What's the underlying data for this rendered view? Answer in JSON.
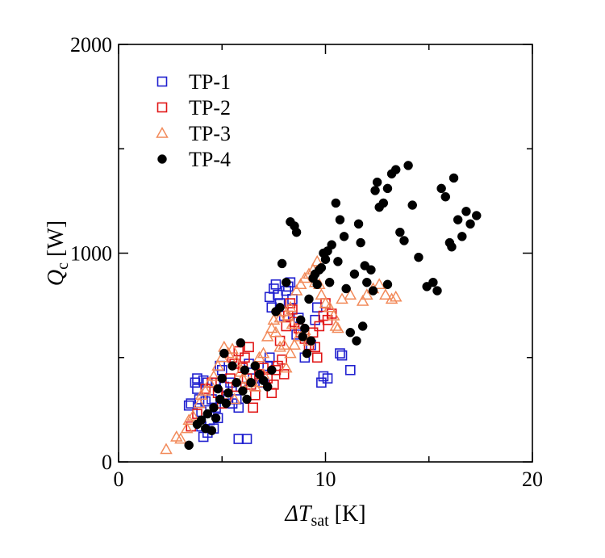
{
  "chart_data": {
    "type": "scatter",
    "title": "",
    "xlabel": {
      "main": "ΔT",
      "sub": "sat",
      "unit": " [K]"
    },
    "ylabel": {
      "main": "Q",
      "sub": "c",
      "unit": " [W]"
    },
    "xlim": [
      0,
      20
    ],
    "ylim": [
      0,
      2000
    ],
    "xticks": [
      0,
      10,
      20
    ],
    "yticks": [
      0,
      1000,
      2000
    ],
    "grid": false,
    "legend": "top-left",
    "series": [
      {
        "name": "TP-1",
        "marker": "open-square",
        "color": "#1f1fcf",
        "points": [
          [
            3.4,
            270
          ],
          [
            3.5,
            280
          ],
          [
            3.7,
            380
          ],
          [
            3.8,
            400
          ],
          [
            3.8,
            350
          ],
          [
            3.9,
            300
          ],
          [
            4.0,
            240
          ],
          [
            4.0,
            170
          ],
          [
            4.1,
            120
          ],
          [
            4.1,
            390
          ],
          [
            4.2,
            290
          ],
          [
            4.3,
            140
          ],
          [
            4.3,
            380
          ],
          [
            4.4,
            200
          ],
          [
            4.5,
            300
          ],
          [
            4.6,
            160
          ],
          [
            4.7,
            260
          ],
          [
            4.7,
            380
          ],
          [
            4.8,
            210
          ],
          [
            4.9,
            460
          ],
          [
            5.0,
            440
          ],
          [
            5.1,
            360
          ],
          [
            5.3,
            300
          ],
          [
            5.4,
            380
          ],
          [
            5.5,
            280
          ],
          [
            5.7,
            300
          ],
          [
            5.8,
            260
          ],
          [
            5.9,
            360
          ],
          [
            5.8,
            110
          ],
          [
            6.2,
            110
          ],
          [
            6.3,
            470
          ],
          [
            6.5,
            400
          ],
          [
            6.8,
            410
          ],
          [
            7.0,
            380
          ],
          [
            7.2,
            460
          ],
          [
            7.3,
            500
          ],
          [
            7.3,
            790
          ],
          [
            7.4,
            740
          ],
          [
            7.5,
            830
          ],
          [
            7.6,
            850
          ],
          [
            7.7,
            800
          ],
          [
            7.8,
            760
          ],
          [
            8.0,
            700
          ],
          [
            8.1,
            820
          ],
          [
            8.2,
            840
          ],
          [
            8.3,
            860
          ],
          [
            8.4,
            780
          ],
          [
            8.6,
            610
          ],
          [
            8.7,
            690
          ],
          [
            9.0,
            500
          ],
          [
            9.3,
            560
          ],
          [
            9.5,
            680
          ],
          [
            9.6,
            740
          ],
          [
            9.8,
            380
          ],
          [
            9.9,
            410
          ],
          [
            10.1,
            400
          ],
          [
            10.7,
            520
          ],
          [
            10.8,
            510
          ],
          [
            11.2,
            440
          ]
        ]
      },
      {
        "name": "TP-2",
        "marker": "open-square",
        "color": "#e11717",
        "points": [
          [
            3.5,
            170
          ],
          [
            3.8,
            230
          ],
          [
            4.2,
            350
          ],
          [
            4.5,
            380
          ],
          [
            4.8,
            330
          ],
          [
            5.0,
            280
          ],
          [
            5.2,
            310
          ],
          [
            5.4,
            400
          ],
          [
            5.5,
            500
          ],
          [
            5.6,
            470
          ],
          [
            5.7,
            360
          ],
          [
            5.8,
            530
          ],
          [
            6.0,
            450
          ],
          [
            6.1,
            500
          ],
          [
            6.2,
            400
          ],
          [
            6.3,
            550
          ],
          [
            6.4,
            370
          ],
          [
            6.5,
            260
          ],
          [
            6.6,
            320
          ],
          [
            6.8,
            420
          ],
          [
            7.0,
            450
          ],
          [
            7.2,
            400
          ],
          [
            7.4,
            330
          ],
          [
            7.5,
            370
          ],
          [
            7.6,
            440
          ],
          [
            7.7,
            460
          ],
          [
            7.8,
            580
          ],
          [
            7.9,
            490
          ],
          [
            8.0,
            420
          ],
          [
            8.1,
            650
          ],
          [
            8.2,
            700
          ],
          [
            8.3,
            760
          ],
          [
            8.4,
            730
          ],
          [
            8.5,
            670
          ],
          [
            8.7,
            640
          ],
          [
            8.8,
            620
          ],
          [
            9.0,
            590
          ],
          [
            9.2,
            560
          ],
          [
            9.4,
            620
          ],
          [
            9.5,
            550
          ],
          [
            9.6,
            500
          ],
          [
            9.7,
            650
          ],
          [
            9.9,
            700
          ],
          [
            10.0,
            760
          ],
          [
            10.1,
            680
          ],
          [
            10.3,
            710
          ]
        ]
      },
      {
        "name": "TP-3",
        "marker": "open-triangle",
        "color": "#f28a5a",
        "points": [
          [
            2.3,
            60
          ],
          [
            2.8,
            120
          ],
          [
            3.0,
            110
          ],
          [
            3.3,
            160
          ],
          [
            3.6,
            220
          ],
          [
            3.9,
            280
          ],
          [
            4.2,
            340
          ],
          [
            4.4,
            380
          ],
          [
            4.6,
            410
          ],
          [
            4.8,
            460
          ],
          [
            5.0,
            500
          ],
          [
            5.1,
            550
          ],
          [
            5.3,
            520
          ],
          [
            5.5,
            540
          ],
          [
            5.7,
            480
          ],
          [
            5.9,
            430
          ],
          [
            6.0,
            400
          ],
          [
            6.3,
            380
          ],
          [
            6.6,
            360
          ],
          [
            6.8,
            380
          ],
          [
            7.0,
            420
          ],
          [
            7.2,
            600
          ],
          [
            7.4,
            640
          ],
          [
            7.5,
            680
          ],
          [
            7.6,
            620
          ],
          [
            7.8,
            690
          ],
          [
            8.0,
            720
          ],
          [
            8.2,
            700
          ],
          [
            8.3,
            740
          ],
          [
            8.4,
            660
          ],
          [
            8.6,
            820
          ],
          [
            8.8,
            850
          ],
          [
            9.0,
            880
          ],
          [
            9.2,
            900
          ],
          [
            9.4,
            920
          ],
          [
            9.5,
            860
          ],
          [
            9.6,
            960
          ],
          [
            9.7,
            850
          ],
          [
            9.8,
            800
          ],
          [
            10.0,
            760
          ],
          [
            10.2,
            740
          ],
          [
            10.4,
            700
          ],
          [
            10.5,
            650
          ],
          [
            10.6,
            640
          ],
          [
            10.8,
            780
          ],
          [
            11.2,
            800
          ],
          [
            11.8,
            770
          ],
          [
            12.0,
            800
          ],
          [
            12.3,
            830
          ],
          [
            12.6,
            850
          ],
          [
            12.9,
            800
          ],
          [
            13.2,
            780
          ],
          [
            13.4,
            790
          ],
          [
            7.8,
            550
          ],
          [
            8.0,
            560
          ],
          [
            8.3,
            520
          ],
          [
            8.5,
            560
          ],
          [
            8.7,
            600
          ],
          [
            9.0,
            630
          ],
          [
            9.2,
            580
          ],
          [
            7.0,
            520
          ],
          [
            6.8,
            500
          ],
          [
            8.1,
            450
          ],
          [
            4.0,
            320
          ],
          [
            3.4,
            200
          ],
          [
            5.6,
            300
          ]
        ]
      },
      {
        "name": "TP-4",
        "marker": "filled-circle",
        "color": "#000000",
        "points": [
          [
            3.4,
            80
          ],
          [
            3.8,
            180
          ],
          [
            4.0,
            200
          ],
          [
            4.2,
            160
          ],
          [
            4.3,
            230
          ],
          [
            4.5,
            150
          ],
          [
            4.6,
            260
          ],
          [
            4.7,
            210
          ],
          [
            4.8,
            350
          ],
          [
            4.9,
            300
          ],
          [
            5.0,
            400
          ],
          [
            5.1,
            520
          ],
          [
            5.2,
            280
          ],
          [
            5.3,
            330
          ],
          [
            5.5,
            460
          ],
          [
            5.7,
            380
          ],
          [
            5.9,
            570
          ],
          [
            6.0,
            340
          ],
          [
            6.1,
            440
          ],
          [
            6.2,
            300
          ],
          [
            6.4,
            380
          ],
          [
            6.6,
            460
          ],
          [
            6.8,
            420
          ],
          [
            7.0,
            390
          ],
          [
            7.2,
            360
          ],
          [
            7.4,
            440
          ],
          [
            7.6,
            720
          ],
          [
            7.8,
            740
          ],
          [
            7.9,
            950
          ],
          [
            8.1,
            860
          ],
          [
            8.3,
            1150
          ],
          [
            8.5,
            1130
          ],
          [
            8.6,
            1100
          ],
          [
            8.8,
            680
          ],
          [
            9.0,
            640
          ],
          [
            9.1,
            520
          ],
          [
            9.3,
            580
          ],
          [
            9.4,
            880
          ],
          [
            9.5,
            900
          ],
          [
            9.6,
            850
          ],
          [
            9.7,
            920
          ],
          [
            9.8,
            930
          ],
          [
            10.0,
            970
          ],
          [
            10.1,
            1010
          ],
          [
            10.2,
            860
          ],
          [
            10.3,
            1040
          ],
          [
            10.5,
            1240
          ],
          [
            10.7,
            1160
          ],
          [
            10.9,
            1080
          ],
          [
            11.0,
            830
          ],
          [
            11.2,
            620
          ],
          [
            11.4,
            900
          ],
          [
            11.6,
            1140
          ],
          [
            11.7,
            1050
          ],
          [
            11.9,
            940
          ],
          [
            12.0,
            860
          ],
          [
            12.2,
            920
          ],
          [
            12.4,
            1300
          ],
          [
            12.5,
            1340
          ],
          [
            12.6,
            1220
          ],
          [
            12.8,
            1240
          ],
          [
            13.0,
            1310
          ],
          [
            13.2,
            1380
          ],
          [
            13.4,
            1400
          ],
          [
            13.6,
            1100
          ],
          [
            13.8,
            1060
          ],
          [
            14.0,
            1420
          ],
          [
            14.2,
            1230
          ],
          [
            14.5,
            980
          ],
          [
            14.9,
            840
          ],
          [
            15.2,
            860
          ],
          [
            15.4,
            820
          ],
          [
            15.6,
            1310
          ],
          [
            15.8,
            1270
          ],
          [
            16.0,
            1050
          ],
          [
            16.1,
            1030
          ],
          [
            16.2,
            1360
          ],
          [
            16.4,
            1160
          ],
          [
            16.6,
            1080
          ],
          [
            16.8,
            1200
          ],
          [
            17.0,
            1140
          ],
          [
            17.3,
            1180
          ],
          [
            11.8,
            650
          ],
          [
            12.3,
            820
          ],
          [
            13.0,
            850
          ],
          [
            11.5,
            580
          ],
          [
            9.2,
            780
          ],
          [
            10.6,
            960
          ],
          [
            8.9,
            600
          ],
          [
            9.9,
            1000
          ]
        ]
      }
    ]
  }
}
